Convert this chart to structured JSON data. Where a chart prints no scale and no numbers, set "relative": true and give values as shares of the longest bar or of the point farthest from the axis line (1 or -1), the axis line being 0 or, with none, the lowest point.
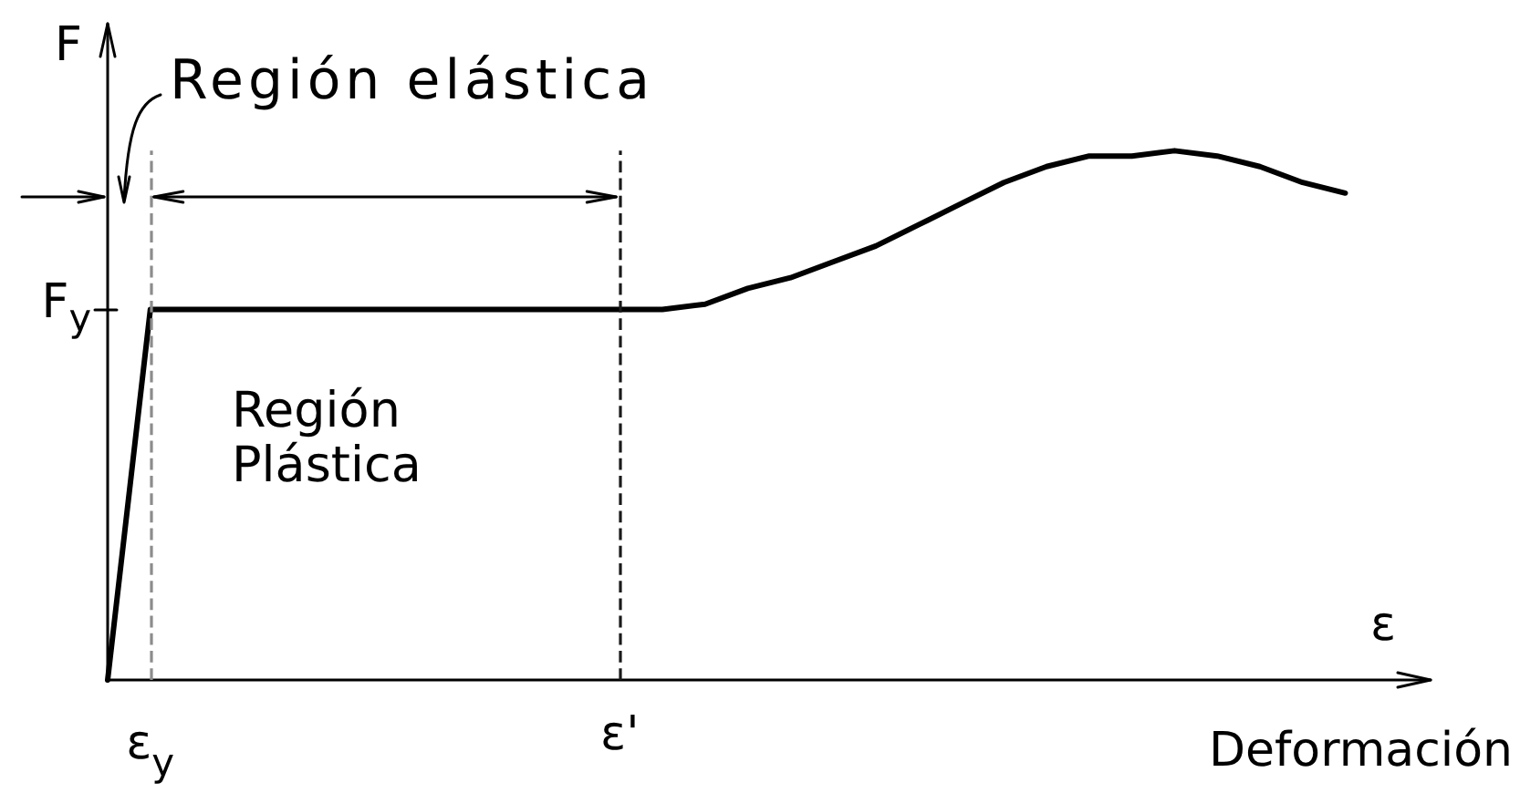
{
  "chart_data": {
    "type": "line",
    "relative": true,
    "xlabel": "ε",
    "ylabel": "F",
    "color": "#000000",
    "categories": [
      null,
      "ε$_{y}$",
      null,
      null,
      null,
      null,
      null,
      null,
      null,
      null,
      null,
      null,
      "ε'",
      null,
      null,
      null,
      null,
      null,
      null,
      null,
      null,
      null,
      null,
      null,
      null,
      null,
      null,
      null,
      null,
      null,
      null,
      null
    ],
    "values": [
      0,
      0.7,
      0.7,
      0.7,
      0.7,
      0.7,
      0.7,
      0.7,
      0.7,
      0.7,
      0.7,
      0.7,
      0.7,
      0.7,
      0.71,
      0.74,
      0.76,
      0.79,
      0.82,
      0.86,
      0.9,
      0.94,
      0.97,
      0.99,
      0.99,
      1,
      0.99,
      0.97,
      0.94,
      0.92,
      null,
      null
    ],
    "ref_lines": [
      {
        "axis": "x",
        "value": "ε$_{y}$",
        "color": "#8c8c8c",
        "line_style": "dashed"
      },
      {
        "axis": "x",
        "value": "ε'",
        "color": "#1a1a1a",
        "line_style": "dashed"
      }
    ],
    "annotations": [
      "F$_{y}$",
      "Región elástica",
      "Región Plástica",
      "Deformación"
    ]
  }
}
